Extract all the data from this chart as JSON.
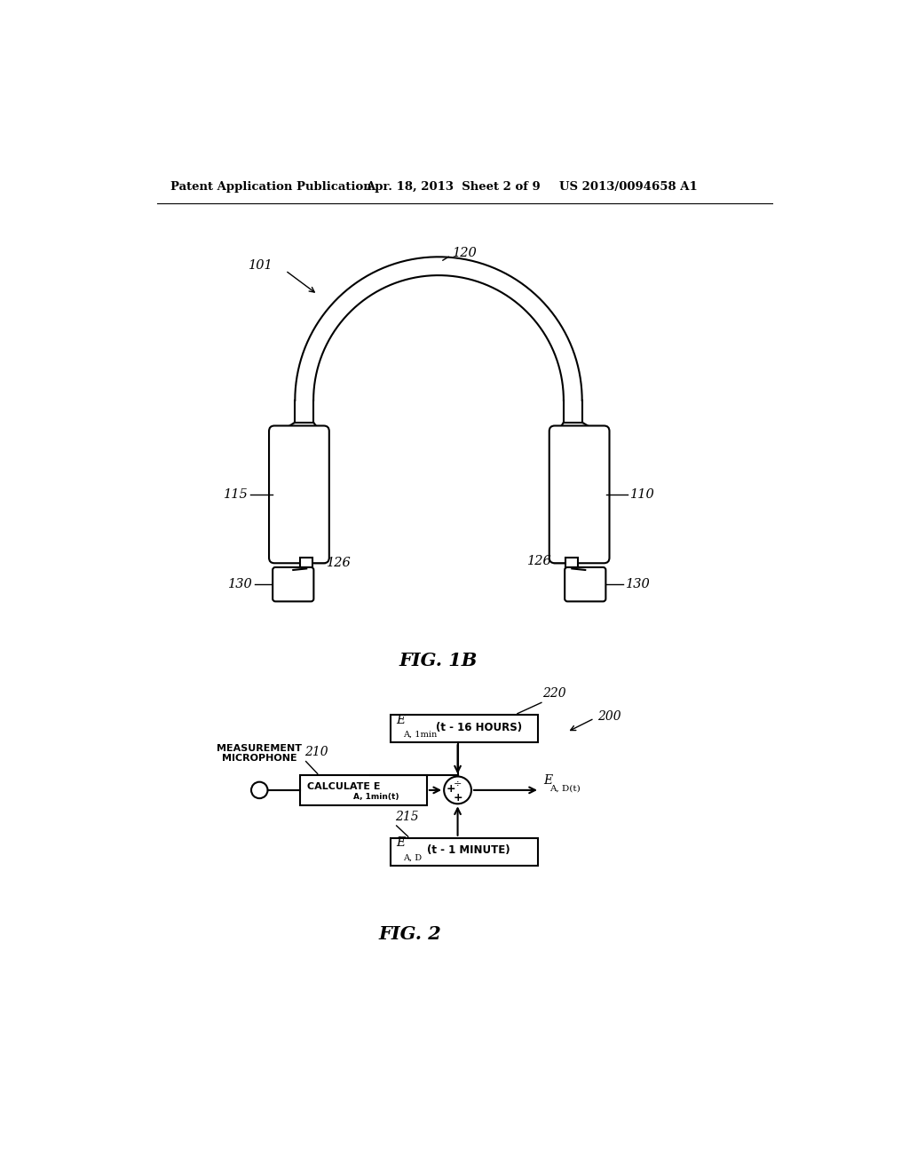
{
  "header_left": "Patent Application Publication",
  "header_mid": "Apr. 18, 2013  Sheet 2 of 9",
  "header_right": "US 2013/0094658 A1",
  "fig1b_label": "FIG. 1B",
  "fig2_label": "FIG. 2",
  "label_101": "101",
  "label_120": "120",
  "label_110": "110",
  "label_115": "115",
  "label_126_left": "126",
  "label_126_right": "126",
  "label_130_left": "130",
  "label_130_right": "130",
  "label_200": "200",
  "label_210": "210",
  "label_215": "215",
  "label_220": "220",
  "text_measurement_microphone": "MEASUREMENT\nMICROPHONE",
  "background_color": "#ffffff"
}
